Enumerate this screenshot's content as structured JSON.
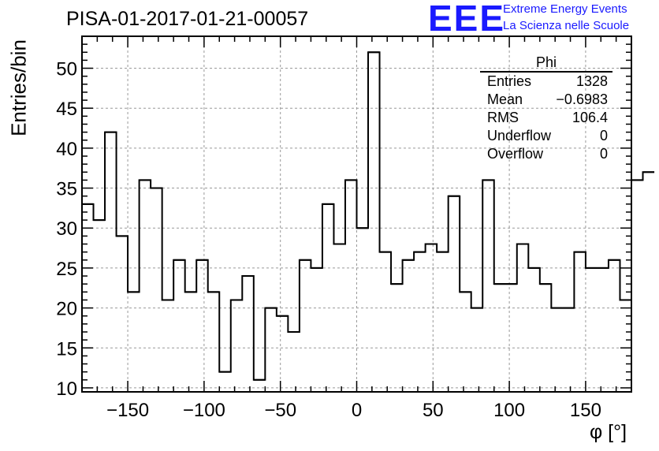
{
  "chart_data": {
    "type": "histogram",
    "title": "PISA-01-2017-01-21-00057",
    "xlabel": "φ [°]",
    "ylabel": "Entries/bin",
    "xlim": [
      -180,
      180
    ],
    "ylim": [
      9.5,
      54
    ],
    "x_ticks": [
      -150,
      -100,
      -50,
      0,
      50,
      100,
      150
    ],
    "y_ticks": [
      10,
      15,
      20,
      25,
      30,
      35,
      40,
      45,
      50
    ],
    "grid": true,
    "bin_edges_start": -180,
    "bin_width": 7.5,
    "values": [
      33,
      31,
      42,
      29,
      22,
      36,
      35,
      21,
      26,
      22,
      26,
      22,
      12,
      21,
      24,
      11,
      20,
      19,
      17,
      26,
      25,
      33,
      28,
      36,
      30,
      52,
      27,
      23,
      26,
      27,
      28,
      27,
      34,
      22,
      20,
      36,
      23,
      23,
      28,
      25,
      23,
      20,
      20,
      27,
      25,
      25,
      26,
      21,
      36,
      37
    ]
  },
  "stats_box": {
    "name": "Phi",
    "rows": [
      {
        "label": "Entries",
        "value": "1328"
      },
      {
        "label": "Mean",
        "value": "−0.6983"
      },
      {
        "label": "RMS",
        "value": "106.4"
      },
      {
        "label": "Underflow",
        "value": "0"
      },
      {
        "label": "Overflow",
        "value": "0"
      }
    ]
  },
  "logo": {
    "mark": "EEE",
    "line1": "Extreme Energy Events",
    "line2": "La Scienza nelle Scuole",
    "color": "#1a1aff"
  }
}
